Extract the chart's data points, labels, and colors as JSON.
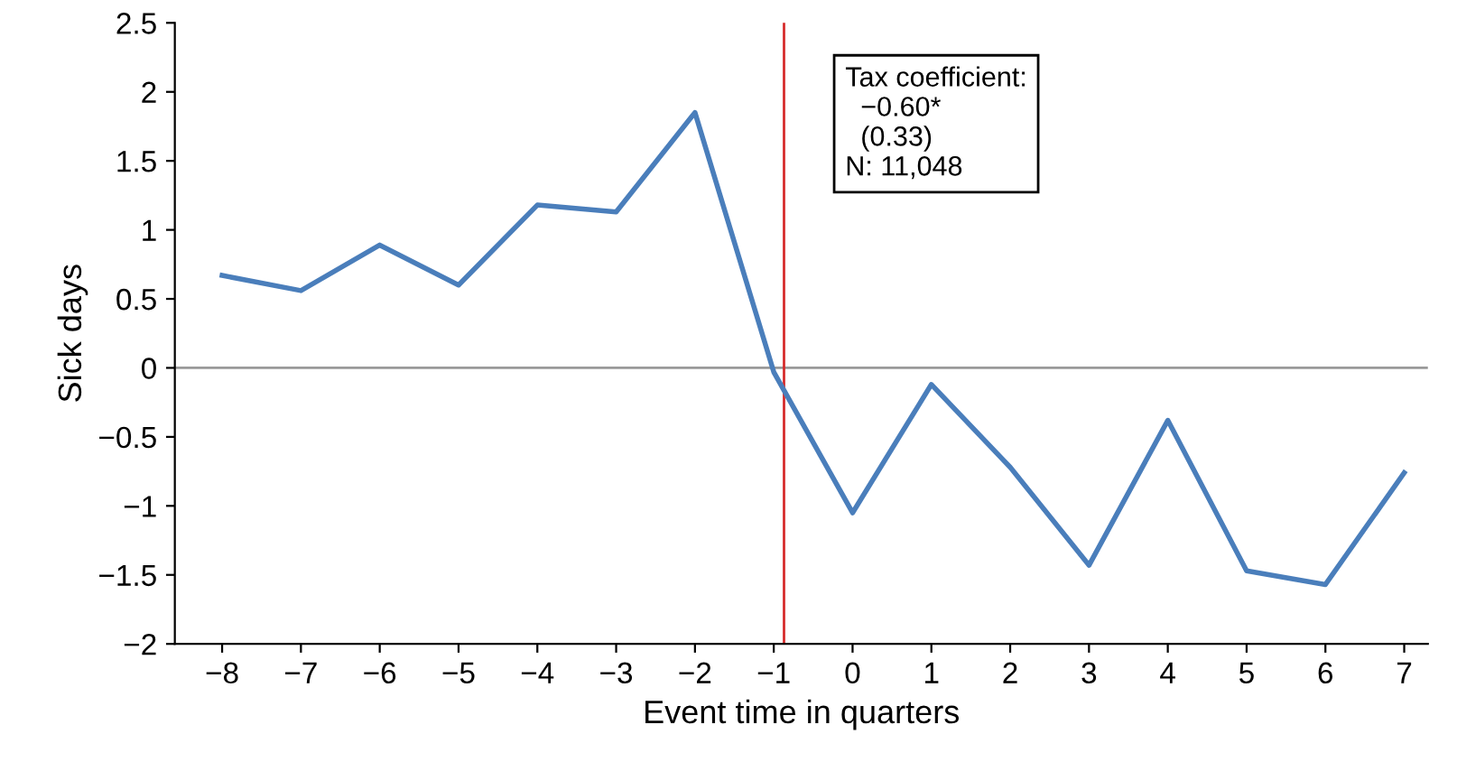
{
  "chart_data": {
    "type": "line",
    "xlabel": "Event time in quarters",
    "ylabel": "Sick days",
    "x": [
      -8,
      -7,
      -6,
      -5,
      -4,
      -3,
      -2,
      -1,
      0,
      1,
      2,
      3,
      4,
      5,
      6,
      7
    ],
    "series": [
      {
        "color": "#4a7ebb",
        "values": [
          0.67,
          0.56,
          0.89,
          0.6,
          1.18,
          1.13,
          1.85,
          -0.03,
          -1.05,
          -0.12,
          -0.72,
          -1.43,
          -0.38,
          -1.47,
          -1.57,
          -0.76
        ]
      }
    ],
    "xlim": [
      -8.6,
      7.3
    ],
    "ylim": [
      -2,
      2.5
    ],
    "xticks": [
      {
        "value": -8,
        "label": "−8"
      },
      {
        "value": -7,
        "label": "−7"
      },
      {
        "value": -6,
        "label": "−6"
      },
      {
        "value": -5,
        "label": "−5"
      },
      {
        "value": -4,
        "label": "−4"
      },
      {
        "value": -3,
        "label": "−3"
      },
      {
        "value": -2,
        "label": "−2"
      },
      {
        "value": -1,
        "label": "−1"
      },
      0,
      1,
      2,
      3,
      4,
      5,
      6,
      7
    ],
    "yticks": [
      {
        "value": -2,
        "label": "−2"
      },
      {
        "value": -1.5,
        "label": "−1.5"
      },
      {
        "value": -1,
        "label": "−1"
      },
      {
        "value": -0.5,
        "label": "−0.5"
      },
      0,
      0.5,
      1,
      1.5,
      2,
      2.5
    ],
    "ref_lines": [
      {
        "axis": "y",
        "value": 0,
        "color": "#999999"
      },
      {
        "axis": "x",
        "value": -0.87,
        "color": "#d62b2b"
      }
    ],
    "annotations": [
      "Tax coefficient:\n  −0.60*\n  (0.33)\nN: 11,048"
    ],
    "grid": false,
    "legend": false,
    "marker": "none",
    "line_style": "solid"
  }
}
